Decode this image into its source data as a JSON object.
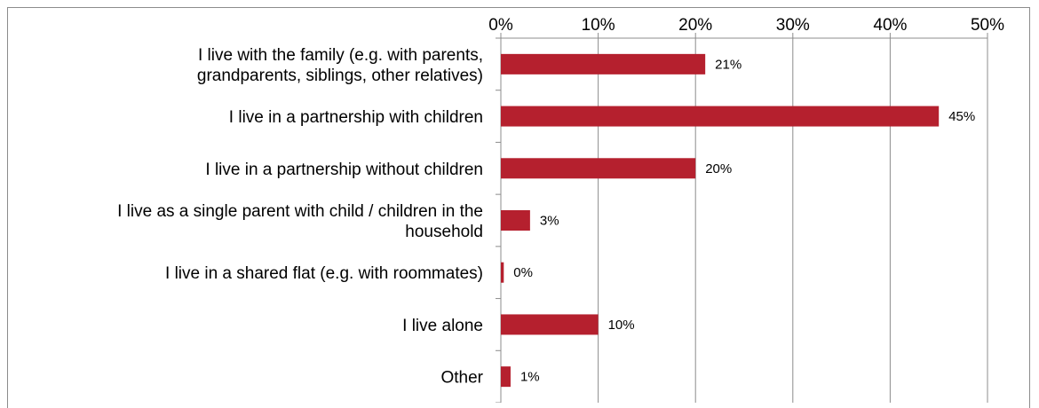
{
  "chart_data": {
    "type": "bar",
    "orientation": "horizontal",
    "categories": [
      [
        "I live with the family (e.g. with parents,",
        "grandparents, siblings, other relatives)"
      ],
      [
        "I live in a partnership with children"
      ],
      [
        "I live in a partnership without children"
      ],
      [
        "I live as a single parent with child / children in the",
        "household"
      ],
      [
        "I live in a shared flat (e.g. with roommates)"
      ],
      [
        "I live alone"
      ],
      [
        "Other"
      ]
    ],
    "values": [
      21,
      45,
      20,
      3,
      0.3,
      10,
      1
    ],
    "data_labels": [
      "21%",
      "45%",
      "20%",
      "3%",
      "0%",
      "10%",
      "1%"
    ],
    "xlim": [
      0,
      50
    ],
    "x_ticks": [
      0,
      10,
      20,
      30,
      40,
      50
    ],
    "x_tick_labels": [
      "0%",
      "10%",
      "20%",
      "30%",
      "40%",
      "50%"
    ],
    "x_axis_position": "top",
    "grid": "vertical",
    "title": "",
    "xlabel": "",
    "ylabel": "",
    "colors": {
      "bar": "#b5202e",
      "grid": "#8c8c8c",
      "axis": "#8c8c8c"
    }
  }
}
